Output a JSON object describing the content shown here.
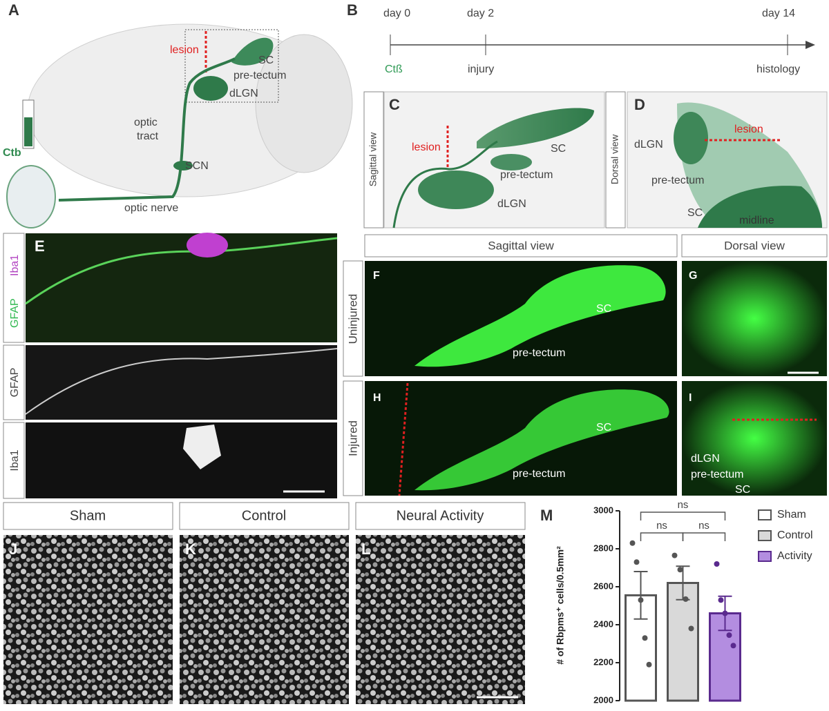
{
  "panel_a": {
    "letter": "A",
    "lesion": "lesion",
    "sc": "SC",
    "pretectum": "pre-tectum",
    "dlgn": "dLGN",
    "optic_tract": [
      "optic",
      "tract"
    ],
    "ctb": "Ctb",
    "scn": "SCN",
    "optic_nerve": "optic nerve"
  },
  "panel_b": {
    "letter": "B",
    "timeline": [
      {
        "day": "day 0",
        "event": "Ctß"
      },
      {
        "day": "day 2",
        "event": "injury"
      },
      {
        "day": "day 14",
        "event": "histology"
      }
    ]
  },
  "panel_c": {
    "letter": "C",
    "view": "Sagittal view",
    "lesion": "lesion",
    "sc": "SC",
    "pretectum": "pre-tectum",
    "dlgn": "dLGN"
  },
  "panel_d": {
    "letter": "D",
    "view": "Dorsal view",
    "dlgn": "dLGN",
    "lesion": "lesion",
    "pretectum": "pre-tectum",
    "sc": "SC",
    "midline": "midline"
  },
  "panel_e": {
    "letter": "E",
    "merge_labels": [
      "GFAP",
      "Iba1"
    ],
    "row2": "GFAP",
    "row3": "Iba1"
  },
  "panels_fi": {
    "col_headers": [
      "Sagittal view",
      "Dorsal view"
    ],
    "row_labels": [
      "Uninjured",
      "Injured"
    ],
    "f": {
      "letter": "F",
      "sc": "SC",
      "pretectum": "pre-tectum"
    },
    "g": {
      "letter": "G"
    },
    "h": {
      "letter": "H",
      "sc": "SC",
      "pretectum": "pre-tectum"
    },
    "i": {
      "letter": "I",
      "dlgn": "dLGN",
      "pretectum": "pre-tectum",
      "sc": "SC"
    }
  },
  "panels_jl": [
    {
      "letter": "J",
      "title": "Sham"
    },
    {
      "letter": "K",
      "title": "Control"
    },
    {
      "letter": "L",
      "title": "Neural Activity"
    }
  ],
  "chart_data": {
    "type": "bar",
    "letter": "M",
    "y_label": "# of Rbpms⁺ cells/0.5mm²",
    "categories": [
      "Sham",
      "Control",
      "Activity"
    ],
    "values": [
      2555,
      2620,
      2460
    ],
    "errors": [
      125,
      88,
      90
    ],
    "colors": [
      "#ffffff",
      "#d9d9d9",
      "#b38de0"
    ],
    "edge_colors": [
      "#555555",
      "#555555",
      "#5a2a8e"
    ],
    "points": [
      [
        2830,
        2730,
        2530,
        2330,
        2190
      ],
      [
        2765,
        2690,
        2535,
        2380
      ],
      [
        2720,
        2530,
        2460,
        2345,
        2290
      ]
    ],
    "ylim": [
      2000,
      3000
    ],
    "yticks": [
      2000,
      2200,
      2400,
      2600,
      2800,
      3000
    ],
    "significance": [
      {
        "from": "Sham",
        "to": "Activity",
        "label": "ns"
      },
      {
        "from": "Sham",
        "to": "Control",
        "label": "ns"
      },
      {
        "from": "Control",
        "to": "Activity",
        "label": "ns"
      }
    ],
    "legend_position": "right"
  }
}
